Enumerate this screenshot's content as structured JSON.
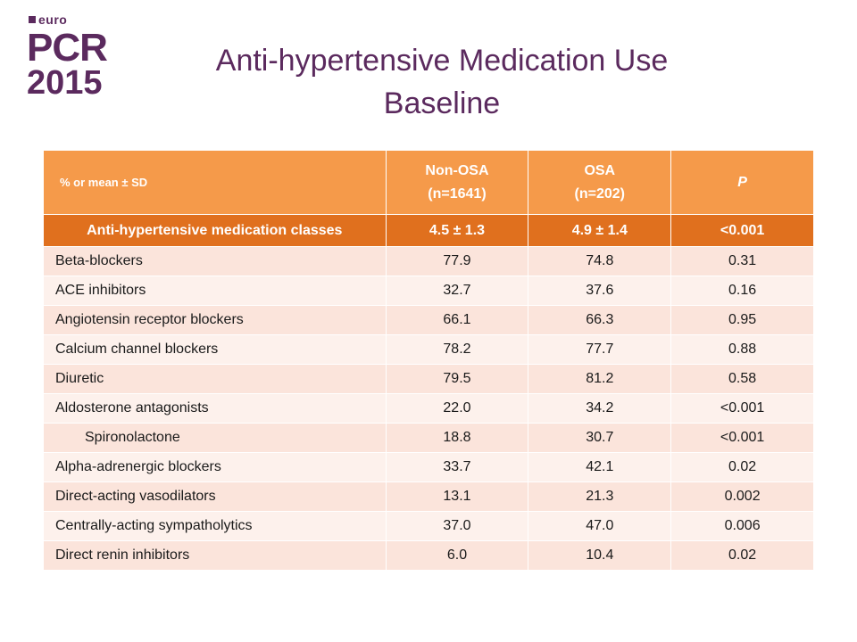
{
  "logo": {
    "euro": "euro",
    "pcr": "PCR",
    "year": "2015"
  },
  "title": {
    "line1": "Anti-hypertensive Medication Use",
    "line2": "Baseline"
  },
  "table": {
    "header": {
      "label": "% or mean ± SD",
      "col1_line1": "Non-OSA",
      "col1_line2": "(n=1641)",
      "col2_line1": "OSA",
      "col2_line2": "(n=202)",
      "col3": "P"
    },
    "class_row": {
      "label": "Anti-hypertensive medication classes",
      "non_osa": "4.5 ± 1.3",
      "osa": "4.9 ± 1.4",
      "p": "<0.001"
    },
    "rows": [
      {
        "label": "Beta-blockers",
        "non_osa": "77.9",
        "osa": "74.8",
        "p": "0.31"
      },
      {
        "label": "ACE inhibitors",
        "non_osa": "32.7",
        "osa": "37.6",
        "p": "0.16"
      },
      {
        "label": "Angiotensin receptor blockers",
        "non_osa": "66.1",
        "osa": "66.3",
        "p": "0.95"
      },
      {
        "label": "Calcium channel blockers",
        "non_osa": "78.2",
        "osa": "77.7",
        "p": "0.88"
      },
      {
        "label": "Diuretic",
        "non_osa": "79.5",
        "osa": "81.2",
        "p": "0.58"
      },
      {
        "label": "Aldosterone antagonists",
        "non_osa": "22.0",
        "osa": "34.2",
        "p": "<0.001"
      },
      {
        "label": "Spironolactone",
        "non_osa": "18.8",
        "osa": "30.7",
        "p": "<0.001"
      },
      {
        "label": "Alpha-adrenergic blockers",
        "non_osa": "33.7",
        "osa": "42.1",
        "p": "0.02"
      },
      {
        "label": "Direct-acting vasodilators",
        "non_osa": "13.1",
        "osa": "21.3",
        "p": "0.002"
      },
      {
        "label": "Centrally-acting sympatholytics",
        "non_osa": "37.0",
        "osa": "47.0",
        "p": "0.006"
      },
      {
        "label": "Direct renin inhibitors",
        "non_osa": "6.0",
        "osa": "10.4",
        "p": "0.02"
      }
    ]
  }
}
